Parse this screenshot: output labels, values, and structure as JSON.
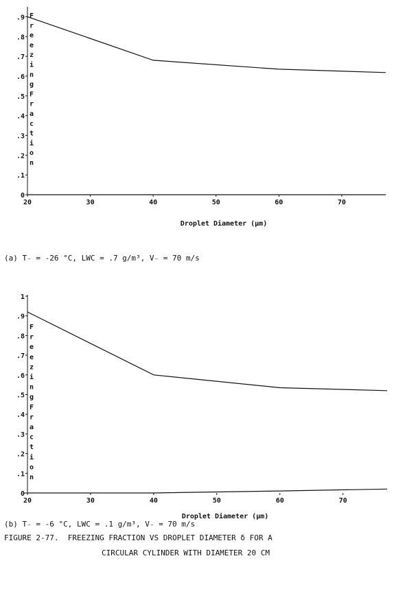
{
  "chart_data": [
    {
      "type": "line",
      "ylabel": "Freezing Fraction",
      "xlabel": "Droplet Diameter (µm)",
      "x": [
        20,
        40,
        60,
        77
      ],
      "series": [
        {
          "values": [
            0.9,
            0.68,
            0.635,
            0.618
          ]
        },
        {
          "values": [
            0.0,
            0.0,
            0.0,
            0.0
          ]
        }
      ],
      "xlim": [
        20,
        77
      ],
      "ylim": [
        0,
        0.95
      ],
      "xticks": [
        "20",
        "30",
        "40",
        "50",
        "60",
        "70"
      ],
      "yticks": [
        "0",
        ".1",
        ".2",
        ".3",
        ".4",
        ".5",
        ".6",
        ".7",
        ".8",
        ".9"
      ],
      "grid": false,
      "caption": "(a) T₋ = -26 °C, LWC = .7 g/m³, V₋ = 70 m/s"
    },
    {
      "type": "line",
      "ylabel": "Freezing Fraction",
      "xlabel": "Droplet Diameter (µm)",
      "x": [
        20,
        40,
        60,
        77
      ],
      "series": [
        {
          "values": [
            0.92,
            0.6,
            0.535,
            0.52
          ]
        },
        {
          "values": [
            0.0,
            0.0,
            0.01,
            0.02
          ]
        }
      ],
      "xlim": [
        20,
        77
      ],
      "ylim": [
        0,
        1
      ],
      "xticks": [
        "20",
        "30",
        "40",
        "50",
        "60",
        "70"
      ],
      "yticks": [
        "0",
        ".1",
        ".2",
        ".3",
        ".4",
        ".5",
        ".6",
        ".7",
        ".8",
        ".9",
        "1"
      ],
      "grid": false,
      "caption": "(b) T₋ = -6 °C, LWC = .1 g/m³, V₋ = 70 m/s"
    }
  ],
  "figure": {
    "title_line1": "FIGURE 2-77.  FREEZING FRACTION VS DROPLET DIAMETER δ FOR A",
    "title_line2": "CIRCULAR CYLINDER WITH DIAMETER 20 CM"
  }
}
